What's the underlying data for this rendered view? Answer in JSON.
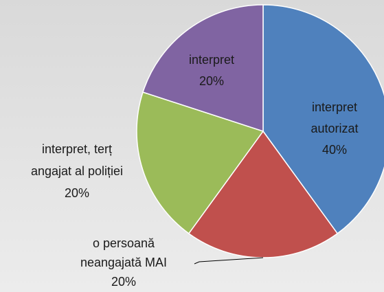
{
  "chart_data": {
    "type": "pie",
    "categories": [
      [
        "interpret",
        "autorizat"
      ],
      [
        "o persoană",
        "neangajată MAI"
      ],
      [
        "interpret, terț",
        "angajat al poliției"
      ],
      [
        "interpret"
      ]
    ],
    "values": [
      40,
      20,
      20,
      20
    ],
    "value_labels": [
      "40%",
      "20%",
      "20%",
      "20%"
    ],
    "colors": [
      "#4f81bd",
      "#c0504d",
      "#9bbb59",
      "#8064a2"
    ]
  }
}
